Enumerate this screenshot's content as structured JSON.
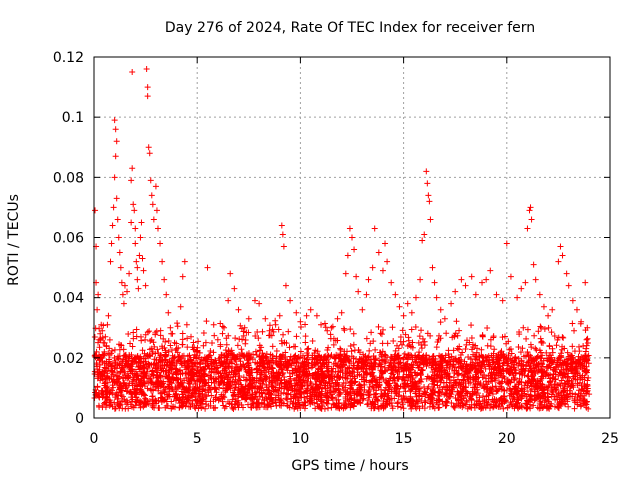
{
  "chart_data": {
    "type": "scatter",
    "title": "Day 276 of 2024, Rate Of TEC Index for receiver fern",
    "xlabel": "GPS time / hours",
    "ylabel": "ROTI / TECUs",
    "xlim": [
      0,
      25
    ],
    "ylim": [
      0,
      0.12
    ],
    "xticks": [
      0,
      5,
      10,
      15,
      20,
      25
    ],
    "xtick_labels": [
      "0",
      "5",
      "10",
      "15",
      "20",
      "25"
    ],
    "yticks": [
      0,
      0.02,
      0.04,
      0.06,
      0.08,
      0.1,
      0.12
    ],
    "ytick_labels": [
      "0",
      "0.02",
      "0.04",
      "0.06",
      "0.08",
      "0.1",
      "0.12"
    ],
    "grid": true,
    "marker": "+",
    "marker_color": "#ff0000",
    "series": [
      {
        "name": "ROTI",
        "points": [
          [
            0.05,
            0.069
          ],
          [
            0.1,
            0.057
          ],
          [
            0.1,
            0.045
          ],
          [
            0.15,
            0.036
          ],
          [
            0.2,
            0.041
          ],
          [
            0.25,
            0.026
          ],
          [
            0.3,
            0.028
          ],
          [
            0.35,
            0.031
          ],
          [
            0.4,
            0.029
          ],
          [
            0.45,
            0.025
          ],
          [
            0.5,
            0.022
          ],
          [
            0.55,
            0.027
          ],
          [
            0.6,
            0.024
          ],
          [
            0.65,
            0.031
          ],
          [
            0.7,
            0.034
          ],
          [
            0.8,
            0.052
          ],
          [
            0.85,
            0.058
          ],
          [
            0.9,
            0.064
          ],
          [
            0.95,
            0.07
          ],
          [
            1.0,
            0.08
          ],
          [
            1.0,
            0.099
          ],
          [
            1.05,
            0.096
          ],
          [
            1.1,
            0.092
          ],
          [
            1.05,
            0.087
          ],
          [
            1.1,
            0.073
          ],
          [
            1.15,
            0.066
          ],
          [
            1.2,
            0.06
          ],
          [
            1.25,
            0.055
          ],
          [
            1.3,
            0.05
          ],
          [
            1.35,
            0.045
          ],
          [
            1.4,
            0.041
          ],
          [
            1.45,
            0.038
          ],
          [
            1.5,
            0.044
          ],
          [
            1.6,
            0.042
          ],
          [
            1.7,
            0.048
          ],
          [
            1.8,
            0.065
          ],
          [
            1.8,
            0.079
          ],
          [
            1.85,
            0.083
          ],
          [
            1.85,
            0.115
          ],
          [
            1.9,
            0.071
          ],
          [
            1.95,
            0.069
          ],
          [
            2.0,
            0.063
          ],
          [
            2.0,
            0.058
          ],
          [
            2.05,
            0.052
          ],
          [
            2.1,
            0.05
          ],
          [
            2.1,
            0.046
          ],
          [
            2.15,
            0.043
          ],
          [
            2.2,
            0.054
          ],
          [
            2.25,
            0.06
          ],
          [
            2.3,
            0.065
          ],
          [
            2.35,
            0.053
          ],
          [
            2.4,
            0.049
          ],
          [
            2.5,
            0.044
          ],
          [
            2.55,
            0.116
          ],
          [
            2.6,
            0.11
          ],
          [
            2.6,
            0.107
          ],
          [
            2.65,
            0.09
          ],
          [
            2.7,
            0.088
          ],
          [
            2.75,
            0.079
          ],
          [
            2.8,
            0.074
          ],
          [
            2.85,
            0.071
          ],
          [
            2.9,
            0.066
          ],
          [
            3.0,
            0.077
          ],
          [
            3.05,
            0.069
          ],
          [
            3.1,
            0.063
          ],
          [
            3.2,
            0.058
          ],
          [
            3.3,
            0.052
          ],
          [
            3.4,
            0.046
          ],
          [
            3.5,
            0.041
          ],
          [
            3.6,
            0.035
          ],
          [
            3.7,
            0.03
          ],
          [
            3.8,
            0.028
          ],
          [
            3.9,
            0.025
          ],
          [
            4.0,
            0.023
          ],
          [
            4.2,
            0.037
          ],
          [
            4.3,
            0.047
          ],
          [
            4.4,
            0.052
          ],
          [
            4.5,
            0.031
          ],
          [
            4.7,
            0.027
          ],
          [
            5.0,
            0.022
          ],
          [
            5.3,
            0.024
          ],
          [
            5.5,
            0.05
          ],
          [
            5.8,
            0.031
          ],
          [
            6.0,
            0.026
          ],
          [
            6.3,
            0.03
          ],
          [
            6.5,
            0.039
          ],
          [
            6.6,
            0.048
          ],
          [
            6.8,
            0.043
          ],
          [
            7.0,
            0.036
          ],
          [
            7.3,
            0.03
          ],
          [
            7.5,
            0.033
          ],
          [
            7.8,
            0.039
          ],
          [
            8.0,
            0.038
          ],
          [
            8.3,
            0.033
          ],
          [
            8.5,
            0.029
          ],
          [
            8.8,
            0.031
          ],
          [
            9.0,
            0.034
          ],
          [
            9.1,
            0.064
          ],
          [
            9.15,
            0.061
          ],
          [
            9.2,
            0.057
          ],
          [
            9.3,
            0.044
          ],
          [
            9.5,
            0.039
          ],
          [
            9.8,
            0.035
          ],
          [
            10.0,
            0.032
          ],
          [
            10.3,
            0.034
          ],
          [
            10.5,
            0.036
          ],
          [
            10.8,
            0.034
          ],
          [
            11.0,
            0.031
          ],
          [
            11.3,
            0.029
          ],
          [
            11.5,
            0.03
          ],
          [
            11.8,
            0.033
          ],
          [
            12.0,
            0.035
          ],
          [
            12.2,
            0.048
          ],
          [
            12.3,
            0.054
          ],
          [
            12.4,
            0.063
          ],
          [
            12.5,
            0.06
          ],
          [
            12.6,
            0.056
          ],
          [
            12.7,
            0.047
          ],
          [
            12.8,
            0.042
          ],
          [
            13.0,
            0.036
          ],
          [
            13.2,
            0.041
          ],
          [
            13.3,
            0.046
          ],
          [
            13.5,
            0.05
          ],
          [
            13.6,
            0.063
          ],
          [
            13.8,
            0.055
          ],
          [
            14.0,
            0.049
          ],
          [
            14.1,
            0.058
          ],
          [
            14.2,
            0.052
          ],
          [
            14.4,
            0.045
          ],
          [
            14.6,
            0.041
          ],
          [
            14.8,
            0.037
          ],
          [
            15.0,
            0.034
          ],
          [
            15.2,
            0.038
          ],
          [
            15.4,
            0.035
          ],
          [
            15.6,
            0.04
          ],
          [
            15.8,
            0.046
          ],
          [
            15.9,
            0.059
          ],
          [
            16.0,
            0.061
          ],
          [
            16.1,
            0.082
          ],
          [
            16.15,
            0.078
          ],
          [
            16.2,
            0.074
          ],
          [
            16.25,
            0.072
          ],
          [
            16.3,
            0.066
          ],
          [
            16.4,
            0.05
          ],
          [
            16.5,
            0.045
          ],
          [
            16.6,
            0.04
          ],
          [
            16.8,
            0.036
          ],
          [
            17.0,
            0.033
          ],
          [
            17.3,
            0.038
          ],
          [
            17.5,
            0.042
          ],
          [
            17.8,
            0.046
          ],
          [
            18.0,
            0.044
          ],
          [
            18.3,
            0.047
          ],
          [
            18.5,
            0.041
          ],
          [
            18.8,
            0.045
          ],
          [
            19.0,
            0.046
          ],
          [
            19.2,
            0.049
          ],
          [
            19.5,
            0.041
          ],
          [
            19.8,
            0.039
          ],
          [
            20.0,
            0.058
          ],
          [
            20.2,
            0.047
          ],
          [
            20.5,
            0.04
          ],
          [
            20.7,
            0.043
          ],
          [
            20.9,
            0.045
          ],
          [
            21.0,
            0.063
          ],
          [
            21.1,
            0.069
          ],
          [
            21.15,
            0.07
          ],
          [
            21.2,
            0.066
          ],
          [
            21.3,
            0.051
          ],
          [
            21.4,
            0.046
          ],
          [
            21.6,
            0.041
          ],
          [
            21.8,
            0.037
          ],
          [
            22.0,
            0.034
          ],
          [
            22.2,
            0.036
          ],
          [
            22.5,
            0.052
          ],
          [
            22.6,
            0.057
          ],
          [
            22.7,
            0.054
          ],
          [
            22.9,
            0.048
          ],
          [
            23.0,
            0.044
          ],
          [
            23.2,
            0.039
          ],
          [
            23.4,
            0.036
          ],
          [
            23.6,
            0.032
          ],
          [
            23.8,
            0.045
          ],
          [
            23.9,
            0.03
          ]
        ]
      }
    ]
  }
}
